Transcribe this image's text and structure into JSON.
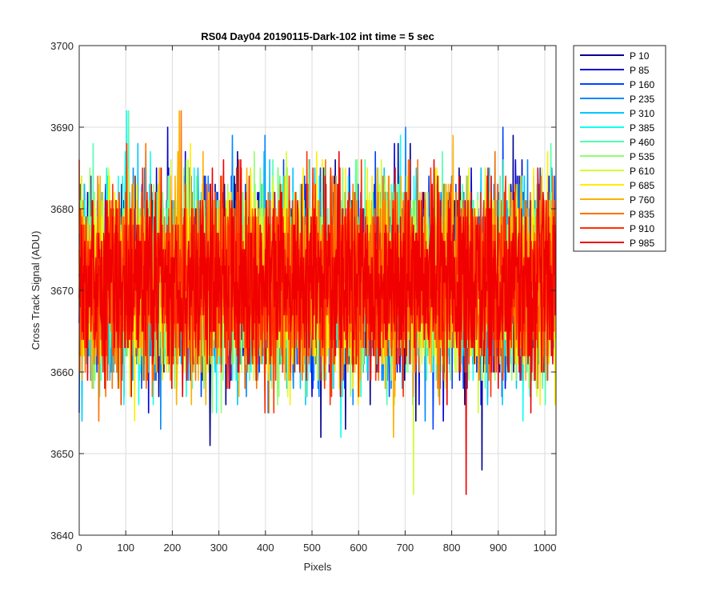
{
  "chart_data": {
    "type": "line",
    "title": "RS04 Day04 20190115-Dark-102 int time = 5 sec",
    "xlabel": "Pixels",
    "ylabel": "Cross Track Signal (ADU)",
    "xlim": [
      0,
      1024
    ],
    "ylim": [
      3640,
      3700
    ],
    "xticks": [
      0,
      100,
      200,
      300,
      400,
      500,
      600,
      700,
      800,
      900,
      1000
    ],
    "yticks": [
      3640,
      3650,
      3660,
      3670,
      3680,
      3690,
      3700
    ],
    "grid": true,
    "legend_position": "outside-top-right",
    "series_mean": 3671,
    "series_spread": 5.5,
    "series_min": 3642,
    "series_max": 3699,
    "series": [
      {
        "name": "P 10",
        "color": "#00008f"
      },
      {
        "name": "P 85",
        "color": "#0000d8"
      },
      {
        "name": "P 160",
        "color": "#0044ff"
      },
      {
        "name": "P 235",
        "color": "#0088ff"
      },
      {
        "name": "P 310",
        "color": "#00c8ff"
      },
      {
        "name": "P 385",
        "color": "#10ffef"
      },
      {
        "name": "P 460",
        "color": "#50ffaf"
      },
      {
        "name": "P 535",
        "color": "#90ff6f"
      },
      {
        "name": "P 610",
        "color": "#d0ff30"
      },
      {
        "name": "P 685",
        "color": "#ffee00"
      },
      {
        "name": "P 760",
        "color": "#ffb000"
      },
      {
        "name": "P 835",
        "color": "#ff7000"
      },
      {
        "name": "P 910",
        "color": "#ff3000"
      },
      {
        "name": "P 985",
        "color": "#f00000"
      }
    ]
  }
}
